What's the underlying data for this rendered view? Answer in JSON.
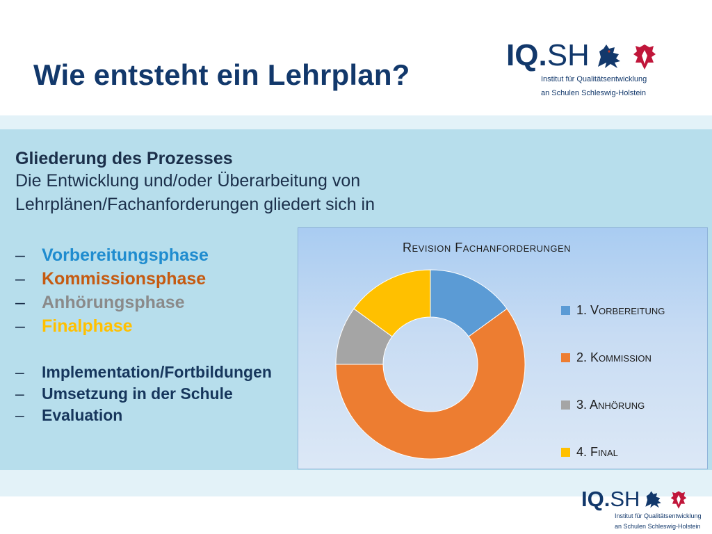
{
  "page": {
    "title": "Wie entsteht ein Lehrplan?"
  },
  "logo": {
    "iq": "IQ",
    "dot": ".",
    "sh": "SH",
    "line1": "Institut für Qualitätsentwicklung",
    "line2": "an Schulen Schleswig-Holstein"
  },
  "content": {
    "heading": "Gliederung des Prozesses",
    "intro_line1": "Die Entwicklung und/oder Überarbeitung von",
    "intro_line2": "Lehrplänen/Fachanforderungen gliedert sich in",
    "dash": "–",
    "phases": [
      {
        "label": "Vorbereitungsphase",
        "color": "#1f8ccf"
      },
      {
        "label": "Kommissionsphase",
        "color": "#c55a11"
      },
      {
        "label": "Anhörungsphase",
        "color": "#8a8a8a"
      },
      {
        "label": "Finalphase",
        "color": "#ffc000"
      }
    ],
    "steps": [
      "Implementation/Fortbildungen",
      "Umsetzung in der Schule",
      "Evaluation"
    ]
  },
  "chart_data": {
    "type": "donut",
    "title": "Revision Fachanforderungen",
    "categories": [
      "1. Vorbereitung",
      "2. Kommission",
      "3. Anhörung",
      "4. Final"
    ],
    "values": [
      15,
      60,
      10,
      15
    ],
    "colors": [
      "#5b9bd5",
      "#ed7d31",
      "#a5a5a5",
      "#ffc000"
    ],
    "legend_position": "right"
  }
}
